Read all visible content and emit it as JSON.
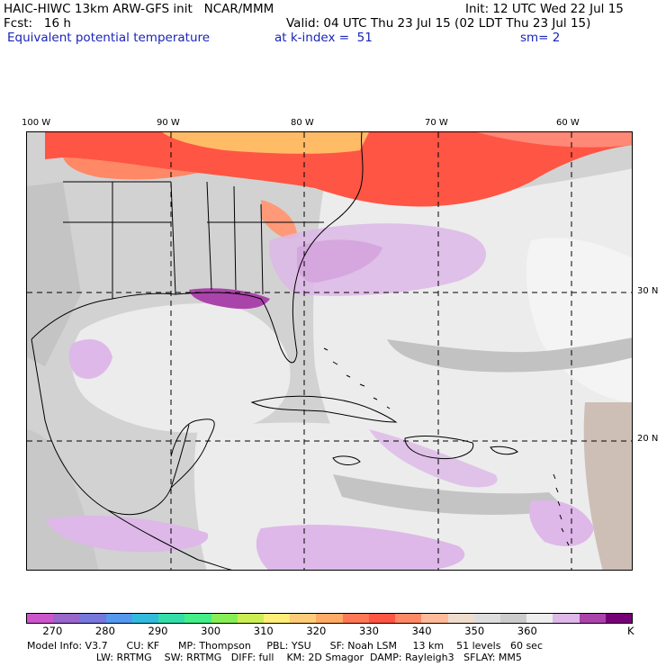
{
  "header": {
    "model_title": "HAIC-HIWC 13km ARW-GFS init   NCAR/MMM",
    "init": "Init: 12 UTC Wed 22 Jul 15",
    "forecast": "Fcst:   16 h",
    "valid": "Valid: 04 UTC Thu 23 Jul 15 (02 LDT Thu 23 Jul 15)",
    "field": "Equivalent potential temperature",
    "level": "at k-index =  51",
    "smoothing": "sm= 2"
  },
  "map": {
    "longitude_labels": [
      "100 W",
      "90 W",
      "80 W",
      "70 W",
      "60 W"
    ],
    "latitude_labels": [
      "30 N",
      "20 N"
    ],
    "region": "Gulf of Mexico / Caribbean / Western Atlantic"
  },
  "colorbar": {
    "colors": [
      "#cc55cc",
      "#9966cc",
      "#7777dd",
      "#5599ee",
      "#33bbdd",
      "#33ddaa",
      "#44ee88",
      "#88ee55",
      "#ccee55",
      "#ffee77",
      "#ffcc77",
      "#ffaa66",
      "#ff7755",
      "#ff5544",
      "#ff8866",
      "#ffbb99",
      "#eedccc",
      "#dddddd",
      "#cccccc",
      "#eeeeee",
      "#ddb8e8",
      "#aa44aa",
      "#770077"
    ],
    "tick_labels": [
      "270",
      "280",
      "290",
      "300",
      "310",
      "320",
      "330",
      "340",
      "350",
      "360"
    ],
    "unit": "K"
  },
  "model_info": {
    "line1": "Model Info: V3.7      CU: KF      MP: Thompson     PBL: YSU      SF: Noah LSM     13 km    51 levels   60 sec",
    "line2": "                      LW: RRTMG    SW: RRTMG   DIFF: full    KM: 2D Smagor  DAMP: Rayleigh3   SFLAY: MM5"
  },
  "colors": {
    "land_gray": "#c8c8c8",
    "ocean_light": "#eeeeee",
    "warm_red": "#ff5544",
    "warm_orange": "#ff8866",
    "purple_light": "#ddb8e8",
    "purple_dark": "#aa44aa",
    "map_title_blue": "#1a24b8"
  }
}
